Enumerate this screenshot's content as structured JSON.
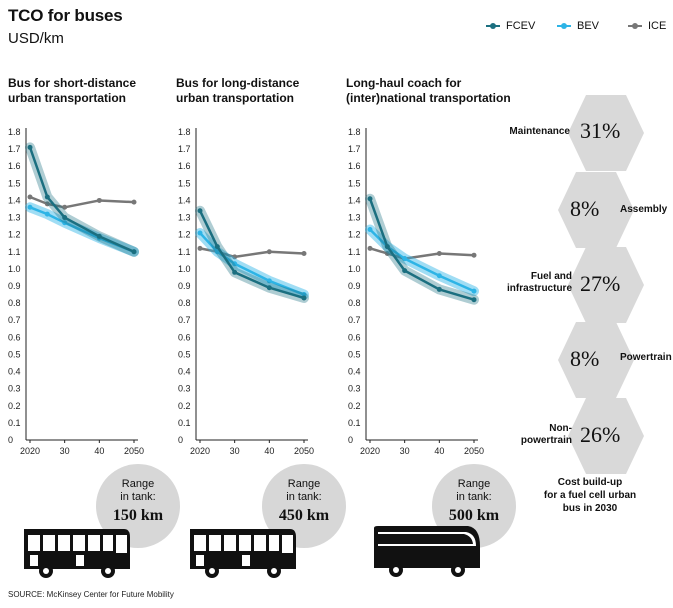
{
  "title": "TCO for buses",
  "subtitle": "USD/km",
  "legend": [
    {
      "name": "FCEV",
      "color": "#1b6f80"
    },
    {
      "name": "BEV",
      "color": "#2db4e6"
    },
    {
      "name": "ICE",
      "color": "#777777"
    }
  ],
  "chart_data": [
    {
      "type": "line",
      "title": "Bus for short-distance urban transportation",
      "x": [
        2020,
        2025,
        2030,
        2040,
        2050
      ],
      "x_ticks": [
        "2020",
        "30",
        "40",
        "2050"
      ],
      "ylim": [
        0,
        1.8
      ],
      "y_ticks": [
        "0",
        "0.1",
        "0.2",
        "0.3",
        "0.4",
        "0.5",
        "0.6",
        "0.7",
        "0.8",
        "0.9",
        "1.0",
        "1.1",
        "1.2",
        "1.3",
        "1.4",
        "1.5",
        "1.6",
        "1.7",
        "1.8"
      ],
      "series": [
        {
          "name": "FCEV",
          "values": [
            1.71,
            1.42,
            1.3,
            1.19,
            1.1
          ]
        },
        {
          "name": "BEV",
          "values": [
            1.36,
            1.32,
            1.27,
            1.18,
            1.1
          ]
        },
        {
          "name": "ICE",
          "values": [
            1.42,
            1.38,
            1.36,
            1.4,
            1.39
          ]
        }
      ]
    },
    {
      "type": "line",
      "title": "Bus for long-distance urban transportation",
      "x": [
        2020,
        2025,
        2030,
        2040,
        2050
      ],
      "x_ticks": [
        "2020",
        "30",
        "40",
        "2050"
      ],
      "ylim": [
        0,
        1.8
      ],
      "y_ticks": [
        "0",
        "0.1",
        "0.2",
        "0.3",
        "0.4",
        "0.5",
        "0.6",
        "0.7",
        "0.8",
        "0.9",
        "1.0",
        "1.1",
        "1.2",
        "1.3",
        "1.4",
        "1.5",
        "1.6",
        "1.7",
        "1.8"
      ],
      "series": [
        {
          "name": "FCEV",
          "values": [
            1.34,
            1.13,
            0.98,
            0.89,
            0.83
          ]
        },
        {
          "name": "BEV",
          "values": [
            1.21,
            1.1,
            1.03,
            0.93,
            0.85
          ]
        },
        {
          "name": "ICE",
          "values": [
            1.12,
            1.1,
            1.07,
            1.1,
            1.09
          ]
        }
      ]
    },
    {
      "type": "line",
      "title": "Long-haul coach for (inter)national transportation",
      "x": [
        2020,
        2025,
        2030,
        2040,
        2050
      ],
      "x_ticks": [
        "2020",
        "30",
        "40",
        "2050"
      ],
      "ylim": [
        0,
        1.8
      ],
      "y_ticks": [
        "0",
        "0.1",
        "0.2",
        "0.3",
        "0.4",
        "0.5",
        "0.6",
        "0.7",
        "0.8",
        "0.9",
        "1.0",
        "1.1",
        "1.2",
        "1.3",
        "1.4",
        "1.5",
        "1.6",
        "1.7",
        "1.8"
      ],
      "series": [
        {
          "name": "FCEV",
          "values": [
            1.41,
            1.13,
            0.99,
            0.88,
            0.82
          ]
        },
        {
          "name": "BEV",
          "values": [
            1.23,
            1.13,
            1.06,
            0.96,
            0.87
          ]
        },
        {
          "name": "ICE",
          "values": [
            1.12,
            1.09,
            1.06,
            1.09,
            1.08
          ]
        }
      ]
    }
  ],
  "panels": [
    {
      "title_line1": "Bus for short-distance",
      "title_line2": "urban transportation",
      "range_label_1": "Range",
      "range_label_2": "in tank:",
      "range_value": "150 km"
    },
    {
      "title_line1": "Bus for long-distance",
      "title_line2": "urban transportation",
      "range_label_1": "Range",
      "range_label_2": "in tank:",
      "range_value": "450 km"
    },
    {
      "title_line1": "Long-haul coach for",
      "title_line2": "(inter)national transportation",
      "range_label_1": "Range",
      "range_label_2": "in tank:",
      "range_value": "500 km"
    }
  ],
  "cost_buildup": {
    "items": [
      {
        "label_line1": "Maintenance",
        "label_line2": "",
        "percent": "31%"
      },
      {
        "label_line1": "Assembly",
        "label_line2": "",
        "percent": "8%"
      },
      {
        "label_line1": "Fuel and",
        "label_line2": "infrastructure",
        "percent": "27%"
      },
      {
        "label_line1": "Powertrain",
        "label_line2": "",
        "percent": "8%"
      },
      {
        "label_line1": "Non-",
        "label_line2": "powertrain",
        "percent": "26%"
      }
    ],
    "caption_line1": "Cost build-up",
    "caption_line2": "for a fuel cell urban",
    "caption_line3": "bus in 2030"
  },
  "source": "SOURCE: McKinsey Center for Future Mobility"
}
